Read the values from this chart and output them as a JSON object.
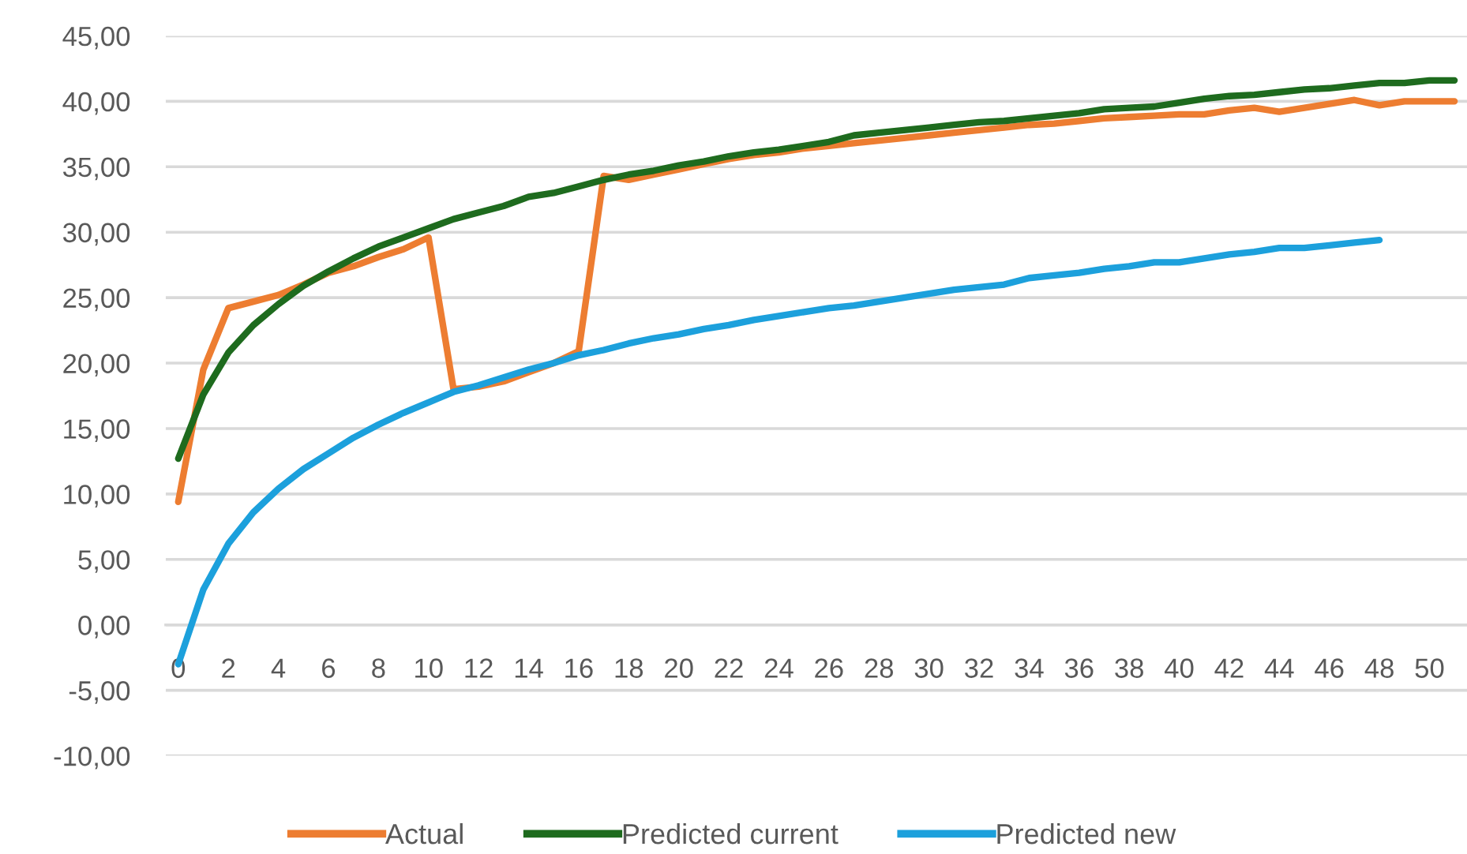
{
  "chart_data": {
    "type": "line",
    "categories": [
      "0",
      null,
      "2",
      null,
      "4",
      null,
      "6",
      null,
      "8",
      null,
      "10",
      null,
      "12",
      null,
      "14",
      null,
      "16",
      null,
      "18",
      null,
      "20",
      null,
      "22",
      null,
      "24",
      null,
      "26",
      null,
      "28",
      null,
      "30",
      null,
      "32",
      null,
      "34",
      null,
      "36",
      null,
      "38",
      null,
      "40",
      null,
      "42",
      null,
      "44",
      null,
      "46",
      null,
      "48",
      null,
      "50",
      null
    ],
    "series": [
      {
        "name": "Actual",
        "color": "#ed7d31",
        "values": [
          9.4,
          19.5,
          24.2,
          24.7,
          25.2,
          26.0,
          26.9,
          27.4,
          28.1,
          28.7,
          29.6,
          18.0,
          18.2,
          18.6,
          19.3,
          20.0,
          20.9,
          34.3,
          34.0,
          34.4,
          34.8,
          35.2,
          35.6,
          35.9,
          36.1,
          36.4,
          36.6,
          36.8,
          37.0,
          37.2,
          37.4,
          37.6,
          37.8,
          38.0,
          38.2,
          38.3,
          38.5,
          38.7,
          38.8,
          38.9,
          39.0,
          39.0,
          39.3,
          39.5,
          39.2,
          39.5,
          39.8,
          40.1,
          39.7,
          40.0,
          40.0,
          40.0
        ]
      },
      {
        "name": "Predicted current",
        "color": "#1e6b1e",
        "values": [
          12.7,
          17.6,
          20.8,
          22.9,
          24.5,
          25.9,
          27.0,
          28.0,
          28.9,
          29.6,
          30.3,
          31.0,
          31.5,
          32.0,
          32.7,
          33.0,
          33.5,
          34.0,
          34.4,
          34.7,
          35.1,
          35.4,
          35.8,
          36.1,
          36.3,
          36.6,
          36.9,
          37.4,
          37.6,
          37.8,
          38.0,
          38.2,
          38.4,
          38.5,
          38.7,
          38.9,
          39.1,
          39.4,
          39.5,
          39.6,
          39.9,
          40.2,
          40.4,
          40.5,
          40.7,
          40.9,
          41.0,
          41.2,
          41.4,
          41.4,
          41.6,
          41.6
        ]
      },
      {
        "name": "Predicted new",
        "color": "#1ca0dc",
        "values": [
          -3.0,
          2.7,
          6.2,
          8.6,
          10.4,
          11.9,
          13.1,
          14.3,
          15.3,
          16.2,
          17.0,
          17.8,
          18.3,
          18.9,
          19.5,
          20.0,
          20.6,
          21.0,
          21.5,
          21.9,
          22.2,
          22.6,
          22.9,
          23.3,
          23.6,
          23.9,
          24.2,
          24.4,
          24.7,
          25.0,
          25.3,
          25.6,
          25.8,
          26.0,
          26.5,
          26.7,
          26.9,
          27.2,
          27.4,
          27.7,
          27.7,
          28.0,
          28.3,
          28.5,
          28.8,
          28.8,
          29.0,
          29.2,
          29.4,
          null,
          null,
          null
        ]
      }
    ],
    "ylim": [
      -10,
      45
    ],
    "yticks": [
      {
        "value": -10,
        "label": "-10,00"
      },
      {
        "value": -5,
        "label": "-5,00"
      },
      {
        "value": 0,
        "label": "0,00"
      },
      {
        "value": 5,
        "label": "5,00"
      },
      {
        "value": 10,
        "label": "10,00"
      },
      {
        "value": 15,
        "label": "15,00"
      },
      {
        "value": 20,
        "label": "20,00"
      },
      {
        "value": 25,
        "label": "25,00"
      },
      {
        "value": 30,
        "label": "30,00"
      },
      {
        "value": 35,
        "label": "35,00"
      },
      {
        "value": 40,
        "label": "40,00"
      },
      {
        "value": 45,
        "label": "45,00"
      }
    ],
    "grid": "y",
    "legend": "bottom",
    "line_style": "solid"
  }
}
